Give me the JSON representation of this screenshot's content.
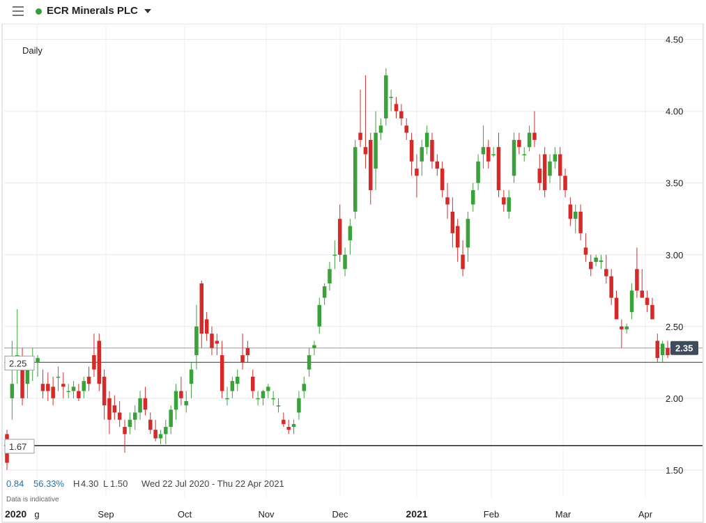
{
  "header": {
    "title": "ECR Minerals PLC",
    "status_color": "#3a9b3a"
  },
  "icons": {
    "menu": "hamburger-menu-icon",
    "dropdown": "chevron-down-icon"
  },
  "chart_data": {
    "type": "candlestick",
    "interval_label": "Daily",
    "x_ticks": [
      "2020",
      "g",
      "Sep",
      "Oct",
      "Nov",
      "Dec",
      "2021",
      "Feb",
      "Mar",
      "Apr"
    ],
    "y_ticks": [
      "4.50",
      "4.00",
      "3.50",
      "3.00",
      "2.50",
      "2.00",
      "1.50"
    ],
    "ylim": [
      1.31,
      4.61
    ],
    "grid": true,
    "colors": {
      "up": "#3ba13b",
      "down": "#d42a2a"
    },
    "reference_lines": [
      {
        "label": "2.25",
        "value": 2.25
      },
      {
        "label": "1.67",
        "value": 1.67
      }
    ],
    "last_price": {
      "label": "2.35",
      "value": 2.35
    },
    "candles": [
      [
        1.75,
        1.78,
        1.5,
        1.55
      ],
      [
        2.0,
        2.4,
        1.85,
        2.1
      ],
      [
        2.25,
        2.62,
        2.1,
        2.3
      ],
      [
        2.2,
        2.35,
        1.95,
        2.0
      ],
      [
        2.1,
        2.28,
        2.0,
        2.2
      ],
      [
        2.22,
        2.35,
        2.12,
        2.25
      ],
      [
        2.25,
        2.3,
        2.15,
        2.28
      ],
      [
        2.1,
        2.2,
        2.0,
        2.05
      ],
      [
        2.1,
        2.18,
        1.98,
        2.05
      ],
      [
        2.08,
        2.15,
        1.95,
        2.0
      ],
      [
        2.15,
        2.22,
        2.05,
        2.15
      ],
      [
        2.1,
        2.18,
        2.0,
        2.08
      ],
      [
        2.05,
        2.1,
        2.0,
        2.05
      ],
      [
        2.05,
        2.12,
        2.0,
        2.08
      ],
      [
        2.05,
        2.1,
        1.98,
        2.0
      ],
      [
        2.05,
        2.15,
        2.0,
        2.12
      ],
      [
        2.15,
        2.22,
        2.05,
        2.1
      ],
      [
        2.3,
        2.45,
        2.15,
        2.2
      ],
      [
        2.4,
        2.45,
        2.05,
        2.1
      ],
      [
        2.15,
        2.2,
        1.85,
        1.95
      ],
      [
        2.0,
        2.05,
        1.75,
        1.85
      ],
      [
        1.95,
        2.02,
        1.85,
        1.9
      ],
      [
        1.9,
        1.98,
        1.8,
        1.85
      ],
      [
        1.8,
        1.85,
        1.62,
        1.75
      ],
      [
        1.8,
        1.9,
        1.75,
        1.85
      ],
      [
        1.85,
        1.95,
        1.78,
        1.9
      ],
      [
        1.9,
        2.05,
        1.85,
        2.0
      ],
      [
        2.0,
        2.08,
        1.88,
        1.92
      ],
      [
        1.85,
        1.9,
        1.75,
        1.78
      ],
      [
        1.78,
        1.85,
        1.7,
        1.72
      ],
      [
        1.72,
        1.78,
        1.68,
        1.75
      ],
      [
        1.75,
        1.85,
        1.68,
        1.8
      ],
      [
        1.8,
        1.95,
        1.75,
        1.92
      ],
      [
        1.92,
        2.1,
        1.85,
        2.05
      ],
      [
        2.05,
        2.15,
        1.95,
        2.0
      ],
      [
        1.95,
        2.05,
        1.9,
        1.98
      ],
      [
        2.1,
        2.25,
        2.0,
        2.2
      ],
      [
        2.3,
        2.65,
        2.2,
        2.5
      ],
      [
        2.8,
        2.82,
        2.35,
        2.45
      ],
      [
        2.55,
        2.6,
        2.4,
        2.45
      ],
      [
        2.45,
        2.5,
        2.3,
        2.35
      ],
      [
        2.4,
        2.45,
        2.3,
        2.38
      ],
      [
        2.3,
        2.4,
        2.0,
        2.05
      ],
      [
        2.0,
        2.08,
        1.95,
        2.0
      ],
      [
        2.05,
        2.15,
        2.0,
        2.12
      ],
      [
        2.1,
        2.2,
        2.05,
        2.15
      ],
      [
        2.3,
        2.45,
        2.2,
        2.25
      ],
      [
        2.35,
        2.4,
        2.25,
        2.3
      ],
      [
        2.15,
        2.2,
        2.0,
        2.05
      ],
      [
        2.0,
        2.05,
        1.95,
        2.0
      ],
      [
        2.0,
        2.06,
        1.95,
        2.05
      ],
      [
        2.05,
        2.1,
        2.0,
        2.08
      ],
      [
        2.0,
        2.05,
        1.95,
        2.0
      ],
      [
        1.95,
        2.0,
        1.9,
        1.95
      ],
      [
        1.85,
        1.9,
        1.8,
        1.82
      ],
      [
        1.8,
        1.85,
        1.75,
        1.78
      ],
      [
        1.8,
        1.85,
        1.75,
        1.82
      ],
      [
        1.9,
        2.05,
        1.85,
        2.0
      ],
      [
        2.05,
        2.15,
        2.0,
        2.1
      ],
      [
        2.2,
        2.35,
        2.15,
        2.3
      ],
      [
        2.35,
        2.4,
        2.3,
        2.37
      ],
      [
        2.5,
        2.7,
        2.45,
        2.65
      ],
      [
        2.7,
        2.8,
        2.65,
        2.78
      ],
      [
        2.8,
        2.95,
        2.75,
        2.9
      ],
      [
        3.0,
        3.1,
        2.9,
        3.0
      ],
      [
        3.25,
        3.35,
        2.95,
        3.0
      ],
      [
        2.9,
        3.05,
        2.85,
        3.0
      ],
      [
        3.1,
        3.25,
        3.0,
        3.2
      ],
      [
        3.3,
        3.8,
        3.25,
        3.75
      ],
      [
        3.85,
        4.15,
        3.75,
        3.8
      ],
      [
        3.75,
        4.25,
        3.6,
        3.7
      ],
      [
        3.8,
        3.85,
        3.35,
        3.45
      ],
      [
        3.6,
        4.0,
        3.45,
        3.85
      ],
      [
        3.85,
        3.95,
        3.8,
        3.9
      ],
      [
        3.95,
        4.3,
        3.9,
        4.25
      ],
      [
        4.1,
        4.15,
        4.0,
        4.1
      ],
      [
        4.05,
        4.1,
        3.95,
        4.0
      ],
      [
        4.0,
        4.05,
        3.9,
        3.95
      ],
      [
        3.9,
        3.95,
        3.8,
        3.85
      ],
      [
        3.8,
        3.85,
        3.55,
        3.65
      ],
      [
        3.6,
        3.7,
        3.4,
        3.55
      ],
      [
        3.65,
        3.8,
        3.55,
        3.75
      ],
      [
        3.75,
        3.9,
        3.7,
        3.85
      ],
      [
        3.8,
        3.85,
        3.6,
        3.65
      ],
      [
        3.65,
        3.7,
        3.55,
        3.6
      ],
      [
        3.6,
        3.65,
        3.4,
        3.45
      ],
      [
        3.4,
        3.5,
        3.25,
        3.35
      ],
      [
        3.3,
        3.4,
        3.05,
        3.15
      ],
      [
        3.2,
        3.25,
        2.95,
        3.05
      ],
      [
        3.0,
        3.1,
        2.85,
        2.9
      ],
      [
        3.05,
        3.3,
        2.95,
        3.25
      ],
      [
        3.35,
        3.5,
        3.3,
        3.45
      ],
      [
        3.5,
        3.7,
        3.45,
        3.65
      ],
      [
        3.7,
        3.9,
        3.6,
        3.75
      ],
      [
        3.75,
        3.8,
        3.6,
        3.65
      ],
      [
        3.7,
        3.75,
        3.68,
        3.7
      ],
      [
        3.75,
        3.85,
        3.4,
        3.45
      ],
      [
        3.4,
        3.45,
        3.3,
        3.35
      ],
      [
        3.3,
        3.45,
        3.25,
        3.4
      ],
      [
        3.55,
        3.85,
        3.5,
        3.8
      ],
      [
        3.8,
        3.85,
        3.7,
        3.75
      ],
      [
        3.7,
        3.75,
        3.65,
        3.7
      ],
      [
        3.75,
        3.9,
        3.72,
        3.85
      ],
      [
        3.85,
        4.0,
        3.75,
        3.8
      ],
      [
        3.6,
        3.7,
        3.45,
        3.5
      ],
      [
        3.7,
        3.75,
        3.4,
        3.45
      ],
      [
        3.55,
        3.7,
        3.5,
        3.65
      ],
      [
        3.65,
        3.75,
        3.6,
        3.7
      ],
      [
        3.7,
        3.75,
        3.45,
        3.55
      ],
      [
        3.55,
        3.6,
        3.4,
        3.45
      ],
      [
        3.35,
        3.4,
        3.2,
        3.25
      ],
      [
        3.25,
        3.35,
        3.15,
        3.3
      ],
      [
        3.3,
        3.35,
        3.1,
        3.15
      ],
      [
        3.05,
        3.15,
        2.95,
        3.0
      ],
      [
        2.95,
        3.0,
        2.85,
        2.9
      ],
      [
        2.95,
        3.0,
        2.92,
        2.98
      ],
      [
        2.95,
        3.0,
        2.9,
        2.96
      ],
      [
        2.9,
        3.0,
        2.8,
        2.85
      ],
      [
        2.85,
        2.9,
        2.65,
        2.7
      ],
      [
        2.7,
        2.75,
        2.55,
        2.55
      ],
      [
        2.5,
        2.55,
        2.35,
        2.48
      ],
      [
        2.48,
        2.52,
        2.45,
        2.5
      ],
      [
        2.6,
        2.8,
        2.55,
        2.75
      ],
      [
        2.9,
        3.05,
        2.7,
        2.75
      ],
      [
        2.75,
        2.9,
        2.7,
        2.7
      ],
      [
        2.7,
        2.75,
        2.6,
        2.65
      ],
      [
        2.65,
        2.7,
        2.55,
        2.55
      ],
      [
        2.4,
        2.45,
        2.25,
        2.28
      ],
      [
        2.3,
        2.4,
        2.25,
        2.38
      ],
      [
        2.35,
        2.4,
        2.28,
        2.3
      ]
    ],
    "stats": {
      "change": "0.84",
      "change_pct": "56.33%",
      "high_prefix": "H",
      "high": "4.30",
      "low_prefix": "L",
      "low": "1.50",
      "range": "Wed 22 Jul 2020 - Thu 22 Apr 2021"
    },
    "note": "Data is indicative"
  }
}
